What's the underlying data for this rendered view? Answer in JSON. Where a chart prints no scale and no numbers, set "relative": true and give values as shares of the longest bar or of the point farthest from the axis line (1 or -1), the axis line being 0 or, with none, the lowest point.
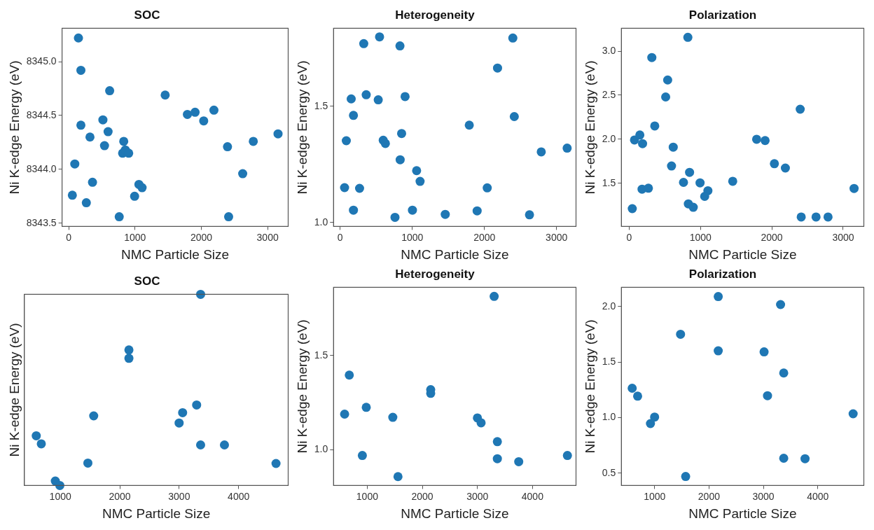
{
  "chart_data": [
    {
      "type": "scatter",
      "title": "SOC",
      "xlabel": "NMC Particle Size",
      "ylabel": "Ni K-edge Energy (eV)",
      "marker": "circle",
      "xlim": [
        -100,
        3310
      ],
      "ylim": [
        8343.47,
        8345.31
      ],
      "xticks": [
        0,
        1000,
        2000,
        3000
      ],
      "yticks": [
        {
          "value": 8343.5,
          "label": "8343.5"
        },
        {
          "value": 8344,
          "label": "8344.0"
        },
        {
          "value": 8344.5,
          "label": "8344.5"
        },
        {
          "value": 8345,
          "label": "8345.0"
        }
      ],
      "series": [
        {
          "color": "#1f77b4",
          "x": [
            147,
            184,
            618,
            1455,
            1790,
            1906,
            2036,
            2190,
            184,
            516,
            594,
            321,
            540,
            830,
            813,
            854,
            905,
            2395,
            2784,
            3157,
            2624,
            92,
            359,
            55,
            266,
            762,
            1059,
            1107,
            994,
            2412
          ],
          "values": [
            8345.22,
            8344.92,
            8344.73,
            8344.69,
            8344.51,
            8344.53,
            8344.45,
            8344.55,
            8344.41,
            8344.46,
            8344.35,
            8344.3,
            8344.22,
            8344.26,
            8344.15,
            8344.18,
            8344.15,
            8344.21,
            8344.26,
            8344.33,
            8343.96,
            8344.05,
            8343.88,
            8343.76,
            8343.69,
            8343.56,
            8343.86,
            8343.83,
            8343.75,
            8343.56
          ]
        }
      ]
    },
    {
      "type": "scatter",
      "title": "Heterogeneity",
      "xlabel": "NMC Particle Size",
      "ylabel": "Ni K-edge Energy (eV)",
      "marker": "circle",
      "xlim": [
        -92,
        3270
      ],
      "ylim": [
        0.983,
        1.836
      ],
      "xticks": [
        0,
        1000,
        2000,
        3000
      ],
      "yticks": [
        {
          "value": 1,
          "label": "1.0"
        },
        {
          "value": 1.5,
          "label": "1.5"
        }
      ],
      "series": [
        {
          "color": "#1f77b4",
          "x": [
            327,
            546,
            829,
            2394,
            2182,
            153,
            361,
            528,
            900,
            184,
            2414,
            1790,
            852,
            85,
            597,
            627,
            832,
            2788,
            3147,
            1060,
            1108,
            61,
            269,
            2039,
            184,
            1002,
            1899,
            760,
            1457,
            2625
          ],
          "values": [
            1.77,
            1.799,
            1.76,
            1.794,
            1.665,
            1.532,
            1.55,
            1.528,
            1.542,
            1.461,
            1.456,
            1.419,
            1.383,
            1.352,
            1.354,
            1.34,
            1.27,
            1.304,
            1.32,
            1.223,
            1.177,
            1.15,
            1.147,
            1.149,
            1.053,
            1.053,
            1.05,
            1.022,
            1.035,
            1.033
          ]
        }
      ]
    },
    {
      "type": "scatter",
      "title": "Polarization",
      "xlabel": "NMC Particle Size",
      "ylabel": "Ni K-edge Energy (eV)",
      "marker": "circle",
      "xlim": [
        -109,
        3290
      ],
      "ylim": [
        1.01,
        3.26
      ],
      "xticks": [
        0,
        1000,
        2000,
        3000
      ],
      "yticks": [
        {
          "value": 1.5,
          "label": "1.5"
        },
        {
          "value": 2,
          "label": "2.0"
        },
        {
          "value": 2.5,
          "label": "2.5"
        },
        {
          "value": 3,
          "label": "3.0"
        }
      ],
      "series": [
        {
          "color": "#1f77b4",
          "x": [
            823,
            318,
            540,
            512,
            359,
            2398,
            75,
            150,
            188,
            618,
            1787,
            1906,
            594,
            2036,
            2190,
            847,
            762,
            994,
            1452,
            181,
            270,
            1104,
            1059,
            830,
            899,
            44,
            2412,
            2620,
            2788,
            3153
          ],
          "values": [
            3.157,
            2.928,
            2.673,
            2.48,
            2.151,
            2.341,
            1.992,
            2.048,
            1.95,
            1.91,
            2.0,
            1.985,
            1.696,
            1.722,
            1.673,
            1.624,
            1.51,
            1.505,
            1.523,
            1.433,
            1.444,
            1.415,
            1.351,
            1.266,
            1.227,
            1.212,
            1.117,
            1.117,
            1.117,
            1.441
          ]
        }
      ]
    },
    {
      "type": "scatter",
      "title": "SOC",
      "xlabel": "NMC Particle Size",
      "ylabel": "Ni K-edge Energy (eV)",
      "marker": "circle",
      "relative": true,
      "xlim": [
        394,
        4835
      ],
      "xticks": [
        1000,
        2000,
        3000,
        4000
      ],
      "series": [
        {
          "color": "#1f77b4",
          "x": [
            594,
            679,
            915,
            991,
            1463,
            1561,
            2154,
            2154,
            2999,
            3058,
            3294,
            3361,
            3361,
            3762,
            4630
          ],
          "values": [
            0.26,
            0.218,
            0.023,
            0,
            0.117,
            0.364,
            0.709,
            0.665,
            0.327,
            0.381,
            0.421,
            1,
            0.212,
            0.212,
            0.115
          ]
        }
      ]
    },
    {
      "type": "scatter",
      "title": "Heterogeneity",
      "xlabel": "NMC Particle Size",
      "ylabel": "Ni K-edge Energy (eV)",
      "marker": "circle",
      "xlim": [
        388,
        4790
      ],
      "ylim": [
        0.811,
        1.861
      ],
      "xticks": [
        1000,
        2000,
        3000,
        4000
      ],
      "yticks": [
        {
          "value": 1,
          "label": "1.0"
        },
        {
          "value": 1.5,
          "label": "1.5"
        }
      ],
      "series": [
        {
          "color": "#1f77b4",
          "x": [
            3304,
            674,
            589,
            982,
            1464,
            2152,
            2152,
            3000,
            3067,
            3362,
            911,
            1558,
            3362,
            3750,
            4634
          ],
          "values": [
            1.813,
            1.396,
            1.189,
            1.225,
            1.172,
            1.319,
            1.299,
            1.169,
            1.143,
            1.043,
            0.97,
            0.858,
            0.953,
            0.937,
            0.97
          ]
        }
      ]
    },
    {
      "type": "scatter",
      "title": "Polarization",
      "xlabel": "NMC Particle Size",
      "ylabel": "Ni K-edge Energy (eV)",
      "marker": "circle",
      "xlim": [
        389,
        4847
      ],
      "ylim": [
        0.39,
        2.173
      ],
      "xticks": [
        1000,
        2000,
        3000,
        4000
      ],
      "yticks": [
        {
          "value": 0.5,
          "label": "0.5"
        },
        {
          "value": 1,
          "label": "1.0"
        },
        {
          "value": 1.5,
          "label": "1.5"
        },
        {
          "value": 2,
          "label": "2.0"
        }
      ],
      "series": [
        {
          "color": "#1f77b4",
          "x": [
            2170,
            3316,
            1477,
            2170,
            3013,
            3374,
            588,
            688,
            3076,
            1000,
            924,
            4650,
            3374,
            3766,
            1571
          ],
          "values": [
            2.09,
            2.018,
            1.751,
            1.602,
            1.592,
            1.402,
            1.265,
            1.194,
            1.198,
            1.006,
            0.947,
            1.035,
            0.635,
            0.631,
            0.471
          ]
        }
      ]
    }
  ]
}
